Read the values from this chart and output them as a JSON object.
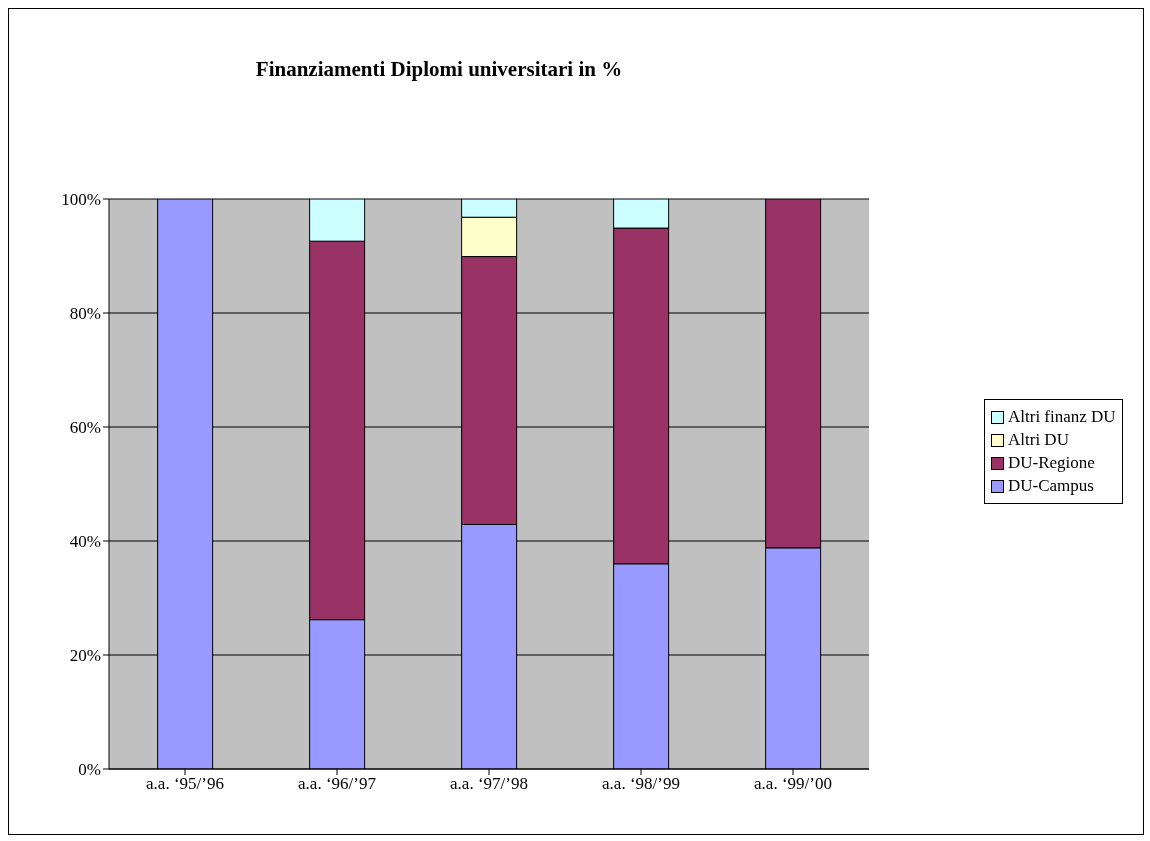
{
  "chart_data": {
    "type": "bar",
    "title": "Finanziamenti Diplomi universitari in %",
    "stacked": true,
    "categories": [
      "a.a. ‘95/’96",
      "a.a. ‘96/’97",
      "a.a. ‘97/’98",
      "a.a. ‘98/’99",
      "a.a. ‘99/’00"
    ],
    "series": [
      {
        "name": "DU-Campus",
        "color": "#9999ff",
        "values": [
          100,
          26.2,
          42.9,
          36.0,
          38.8
        ]
      },
      {
        "name": "DU-Regione",
        "color": "#993366",
        "values": [
          null,
          66.4,
          47.0,
          58.9,
          61.2
        ]
      },
      {
        "name": "Altri DU",
        "color": "#ffffcc",
        "values": [
          null,
          null,
          6.9,
          null,
          null
        ]
      },
      {
        "name": "Altri finanz DU",
        "color": "#ccffff",
        "values": [
          null,
          7.4,
          3.2,
          5.1,
          null
        ]
      }
    ],
    "ylim": [
      0,
      100
    ],
    "yticks": [
      {
        "value": 0,
        "label": "0%"
      },
      {
        "value": 20,
        "label": "20%"
      },
      {
        "value": 40,
        "label": "40%"
      },
      {
        "value": 60,
        "label": "60%"
      },
      {
        "value": 80,
        "label": "80%"
      },
      {
        "value": 100,
        "label": "100%"
      }
    ],
    "grid": "y",
    "legend": "right"
  }
}
